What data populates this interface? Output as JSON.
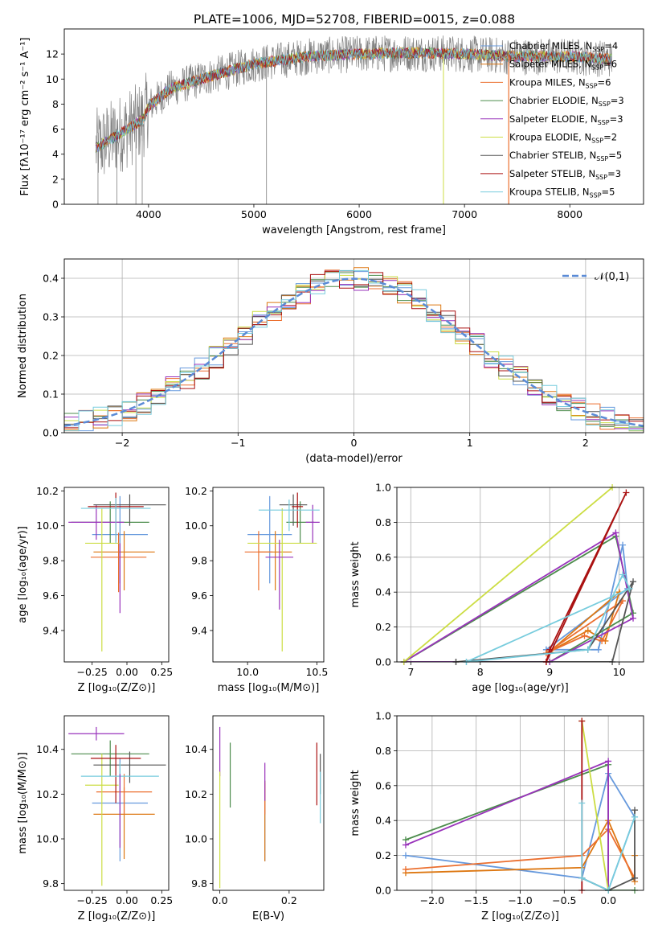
{
  "title": "PLATE=1006, MJD=52708, FIBERID=0015, z=0.088",
  "colors": [
    "#6699dd",
    "#dd7711",
    "#eb6f2f",
    "#4c8c4c",
    "#9933bb",
    "#ccdd44",
    "#555555",
    "#aa1111",
    "#77ccdd"
  ],
  "chart_data": [
    {
      "id": "spectrum",
      "type": "line",
      "xlabel": "wavelength [Angstrom, rest frame]",
      "ylabel": "Flux [fλ10⁻¹⁷ erg cm⁻² s⁻¹ A⁻¹]",
      "xlim": [
        3200,
        8700
      ],
      "ylim": [
        0,
        14
      ],
      "xticks": [
        "4000",
        "5000",
        "6000",
        "7000",
        "8000"
      ],
      "yticks": [
        "0",
        "2",
        "4",
        "6",
        "8",
        "10",
        "12"
      ],
      "legend": [
        "Chabrier MILES, N_SSP=4",
        "Salpeter MILES, N_SSP=6",
        "Kroupa MILES, N_SSP=6",
        "Chabrier ELODIE, N_SSP=3",
        "Salpeter ELODIE, N_SSP=3",
        "Kroupa ELODIE, N_SSP=2",
        "Chabrier STELIB, N_SSP=5",
        "Salpeter STELIB, N_SSP=3",
        "Kroupa STELIB, N_SSP=5"
      ],
      "continuum": [
        [
          3500,
          4.5
        ],
        [
          3800,
          6.0
        ],
        [
          3950,
          6.8
        ],
        [
          4000,
          7.8
        ],
        [
          4200,
          9.2
        ],
        [
          4500,
          10.0
        ],
        [
          5000,
          11.2
        ],
        [
          5500,
          11.8
        ],
        [
          6000,
          12.0
        ],
        [
          6500,
          12.1
        ],
        [
          7000,
          12.0
        ],
        [
          7500,
          11.8
        ],
        [
          8000,
          11.8
        ],
        [
          8400,
          11.6
        ]
      ]
    },
    {
      "id": "residuals",
      "type": "histogram",
      "xlabel": "(data-model)/error",
      "ylabel": "Normed distribution",
      "xlim": [
        -2.5,
        2.5
      ],
      "ylim": [
        0,
        0.45
      ],
      "xticks": [
        "−2",
        "−1",
        "0",
        "1",
        "2"
      ],
      "yticks": [
        "0.0",
        "0.1",
        "0.2",
        "0.3",
        "0.4"
      ],
      "legend": "𝒩(0,1)"
    },
    {
      "id": "age-vs-Z",
      "type": "errorbar",
      "xlabel": "Z [log₁₀(Z/Z⊙)]",
      "ylabel": "age  [log₁₀(age/yr)]",
      "xlim": [
        -0.45,
        0.3
      ],
      "ylim": [
        9.22,
        10.22
      ],
      "xticks": [
        "−0.25",
        "0.00",
        "0.25"
      ],
      "yticks": [
        "9.4",
        "9.6",
        "9.8",
        "10.0",
        "10.2"
      ],
      "points": [
        {
          "c": 0,
          "x": -0.05,
          "xe": 0.2,
          "y": 9.95,
          "ye": [
            0.28,
            0.22
          ]
        },
        {
          "c": 1,
          "x": -0.02,
          "xe": 0.22,
          "y": 9.85,
          "ye": [
            0.22,
            0.12
          ]
        },
        {
          "c": 2,
          "x": -0.06,
          "xe": 0.2,
          "y": 9.82,
          "ye": [
            0.2,
            0.14
          ]
        },
        {
          "c": 3,
          "x": -0.12,
          "xe": 0.28,
          "y": 10.02,
          "ye": [
            0.12,
            0.12
          ]
        },
        {
          "c": 4,
          "x": -0.22,
          "xe": 0.2,
          "y": 10.02,
          "ye": [
            0.1,
            0.1
          ]
        },
        {
          "c": 5,
          "x": -0.18,
          "xe": 0.12,
          "y": 9.9,
          "ye": [
            0.62,
            0.2
          ]
        },
        {
          "c": 6,
          "x": 0.02,
          "xe": 0.26,
          "y": 10.12,
          "ye": [
            0.12,
            0.06
          ]
        },
        {
          "c": 7,
          "x": -0.08,
          "xe": 0.2,
          "y": 10.11,
          "ye": [
            0.2,
            0.08
          ]
        },
        {
          "c": 8,
          "x": -0.08,
          "xe": 0.25,
          "y": 10.1,
          "ye": [
            0.2,
            0.06
          ]
        },
        {
          "c": 4,
          "x": -0.05,
          "xe": 0.0,
          "y": 9.8,
          "ye": [
            0.3,
            0.1
          ]
        }
      ]
    },
    {
      "id": "age-vs-mass",
      "type": "errorbar",
      "xlabel": "mass [log₁₀(M/M⊙)]",
      "ylabel": "",
      "xlim": [
        9.75,
        10.55
      ],
      "ylim": [
        9.22,
        10.22
      ],
      "xticks": [
        "10.0",
        "10.5"
      ],
      "yticks": [
        "9.4",
        "9.6",
        "9.8",
        "10.0",
        "10.2"
      ],
      "points": [
        {
          "c": 0,
          "x": 10.16,
          "xe": 0.16,
          "y": 9.95,
          "ye": [
            0.28,
            0.22
          ]
        },
        {
          "c": 1,
          "x": 10.2,
          "xe": 0.12,
          "y": 9.85,
          "ye": [
            0.22,
            0.12
          ]
        },
        {
          "c": 2,
          "x": 10.08,
          "xe": 0.1,
          "y": 9.85,
          "ye": [
            0.22,
            0.12
          ]
        },
        {
          "c": 3,
          "x": 10.38,
          "xe": 0.1,
          "y": 10.02,
          "ye": [
            0.12,
            0.12
          ]
        },
        {
          "c": 4,
          "x": 10.47,
          "xe": 0.05,
          "y": 10.02,
          "ye": [
            0.12,
            0.1
          ]
        },
        {
          "c": 5,
          "x": 10.25,
          "xe": 0.25,
          "y": 9.9,
          "ye": [
            0.62,
            0.2
          ]
        },
        {
          "c": 6,
          "x": 10.33,
          "xe": 0.1,
          "y": 10.12,
          "ye": [
            0.12,
            0.06
          ]
        },
        {
          "c": 7,
          "x": 10.36,
          "xe": 0.04,
          "y": 10.11,
          "ye": [
            0.12,
            0.08
          ]
        },
        {
          "c": 8,
          "x": 10.3,
          "xe": 0.22,
          "y": 10.09,
          "ye": [
            0.12,
            0.06
          ]
        },
        {
          "c": 4,
          "x": 10.23,
          "xe": 0.1,
          "y": 9.82,
          "ye": [
            0.3,
            0.1
          ]
        }
      ]
    },
    {
      "id": "weight-vs-age",
      "type": "line",
      "xlabel": "age  [log₁₀(age/yr)]",
      "ylabel": "mass weight",
      "xlim": [
        6.8,
        10.35
      ],
      "ylim": [
        0,
        1
      ],
      "xticks": [
        "7",
        "8",
        "9",
        "10"
      ],
      "yticks": [
        "0.0",
        "0.2",
        "0.4",
        "0.6",
        "0.8",
        "1.0"
      ],
      "series": [
        {
          "c": 0,
          "pts": [
            [
              8.95,
              0.07
            ],
            [
              9.7,
              0.07
            ],
            [
              10.05,
              0.67
            ],
            [
              10.12,
              0.42
            ],
            [
              8.95,
              0.07
            ]
          ]
        },
        {
          "c": 1,
          "pts": [
            [
              9.0,
              0.06
            ],
            [
              9.55,
              0.18
            ],
            [
              9.8,
              0.12
            ],
            [
              10.0,
              0.4
            ],
            [
              9.0,
              0.06
            ]
          ]
        },
        {
          "c": 2,
          "pts": [
            [
              8.95,
              0.05
            ],
            [
              9.5,
              0.15
            ],
            [
              9.75,
              0.12
            ],
            [
              10.05,
              0.35
            ],
            [
              8.95,
              0.05
            ]
          ]
        },
        {
          "c": 3,
          "pts": [
            [
              6.9,
              0.0
            ],
            [
              9.95,
              0.72
            ],
            [
              10.2,
              0.28
            ],
            [
              9.0,
              0.0
            ],
            [
              6.9,
              0.0
            ]
          ]
        },
        {
          "c": 4,
          "pts": [
            [
              6.9,
              0.0
            ],
            [
              9.95,
              0.74
            ],
            [
              10.2,
              0.25
            ],
            [
              9.0,
              0.0
            ],
            [
              6.9,
              0.0
            ]
          ]
        },
        {
          "c": 5,
          "pts": [
            [
              6.9,
              0.0
            ],
            [
              9.9,
              1.0
            ]
          ]
        },
        {
          "c": 6,
          "pts": [
            [
              7.65,
              0.0
            ],
            [
              9.55,
              0.07
            ],
            [
              10.2,
              0.46
            ],
            [
              9.9,
              0.0
            ],
            [
              7.65,
              0.0
            ]
          ]
        },
        {
          "c": 7,
          "pts": [
            [
              8.95,
              0.0
            ],
            [
              9.0,
              0.07
            ],
            [
              10.1,
              0.97
            ],
            [
              8.95,
              0.0
            ]
          ]
        },
        {
          "c": 8,
          "pts": [
            [
              7.8,
              0.0
            ],
            [
              9.55,
              0.07
            ],
            [
              10.05,
              0.5
            ],
            [
              10.15,
              0.42
            ],
            [
              7.8,
              0.0
            ]
          ]
        }
      ]
    },
    {
      "id": "mass-vs-Z",
      "type": "errorbar",
      "xlabel": "Z [log₁₀(Z/Z⊙)]",
      "ylabel": "mass [log₁₀(M/M⊙)]",
      "xlim": [
        -0.45,
        0.3
      ],
      "ylim": [
        9.77,
        10.55
      ],
      "xticks": [
        "−0.25",
        "0.00",
        "0.25"
      ],
      "yticks": [
        "9.8",
        "10.0",
        "10.2",
        "10.4"
      ],
      "points": [
        {
          "c": 0,
          "x": -0.05,
          "xe": 0.2,
          "y": 10.16,
          "ye": [
            0.26,
            0.2
          ]
        },
        {
          "c": 1,
          "x": -0.02,
          "xe": 0.22,
          "y": 10.11,
          "ye": [
            0.2,
            0.12
          ]
        },
        {
          "c": 2,
          "x": -0.02,
          "xe": 0.2,
          "y": 10.21,
          "ye": [
            0.1,
            0.08
          ]
        },
        {
          "c": 3,
          "x": -0.12,
          "xe": 0.28,
          "y": 10.38,
          "ye": [
            0.1,
            0.06
          ]
        },
        {
          "c": 4,
          "x": -0.22,
          "xe": 0.2,
          "y": 10.47,
          "ye": [
            0.03,
            0.03
          ]
        },
        {
          "c": 5,
          "x": -0.18,
          "xe": 0.12,
          "y": 10.24,
          "ye": [
            0.45,
            0.14
          ]
        },
        {
          "c": 6,
          "x": 0.02,
          "xe": 0.26,
          "y": 10.33,
          "ye": [
            0.08,
            0.06
          ]
        },
        {
          "c": 7,
          "x": -0.08,
          "xe": 0.18,
          "y": 10.36,
          "ye": [
            0.2,
            0.06
          ]
        },
        {
          "c": 8,
          "x": -0.05,
          "xe": 0.28,
          "y": 10.28,
          "ye": [
            0.12,
            0.06
          ]
        },
        {
          "c": 4,
          "x": -0.05,
          "xe": 0.0,
          "y": 10.21,
          "ye": [
            0.25,
            0.08
          ]
        }
      ]
    },
    {
      "id": "mass-vs-EBV",
      "type": "errorbar",
      "xlabel": "E(B-V)",
      "ylabel": "",
      "xlim": [
        -0.02,
        0.3
      ],
      "ylim": [
        9.77,
        10.55
      ],
      "xticks": [
        "0.0",
        "0.2"
      ],
      "yticks": [
        "9.8",
        "10.0",
        "10.2",
        "10.4"
      ],
      "points": [
        {
          "c": 0,
          "x": 0.13,
          "xe": 0,
          "y": 10.16,
          "ye": [
            0.26,
            0.1
          ]
        },
        {
          "c": 1,
          "x": 0.13,
          "xe": 0,
          "y": 10.1,
          "ye": [
            0.2,
            0.15
          ]
        },
        {
          "c": 2,
          "x": 0.13,
          "xe": 0,
          "y": 10.21,
          "ye": [
            0.1,
            0.05
          ]
        },
        {
          "c": 3,
          "x": 0.03,
          "xe": 0,
          "y": 10.3,
          "ye": [
            0.16,
            0.13
          ]
        },
        {
          "c": 4,
          "x": 0.0,
          "xe": 0,
          "y": 10.4,
          "ye": [
            0.12,
            0.1
          ]
        },
        {
          "c": 5,
          "x": 0.0,
          "xe": 0,
          "y": 10.1,
          "ye": [
            0.32,
            0.2
          ]
        },
        {
          "c": 6,
          "x": 0.29,
          "xe": 0,
          "y": 10.3,
          "ye": [
            0.1,
            0.08
          ]
        },
        {
          "c": 7,
          "x": 0.28,
          "xe": 0,
          "y": 10.3,
          "ye": [
            0.15,
            0.13
          ]
        },
        {
          "c": 8,
          "x": 0.29,
          "xe": 0,
          "y": 10.2,
          "ye": [
            0.13,
            0.1
          ]
        },
        {
          "c": 4,
          "x": 0.13,
          "xe": 0,
          "y": 10.27,
          "ye": [
            0.1,
            0.07
          ]
        }
      ]
    },
    {
      "id": "weight-vs-Z",
      "type": "line",
      "xlabel": "Z [log₁₀(Z/Z⊙)]",
      "ylabel": "mass weight",
      "xlim": [
        -2.4,
        0.4
      ],
      "ylim": [
        0,
        1
      ],
      "xticks": [
        "−2.0",
        "−1.5",
        "−1.0",
        "−0.5",
        "0.0"
      ],
      "yticks": [
        "0.0",
        "0.2",
        "0.4",
        "0.6",
        "0.8",
        "1.0"
      ],
      "series": [
        {
          "c": 0,
          "pts": [
            [
              -2.3,
              0.2
            ],
            [
              -0.3,
              0.07
            ],
            [
              0.0,
              0.67
            ],
            [
              0.3,
              0.42
            ],
            [
              0.0,
              0.0
            ],
            [
              -0.3,
              0.07
            ]
          ]
        },
        {
          "c": 1,
          "pts": [
            [
              -2.3,
              0.1
            ],
            [
              -0.3,
              0.13
            ],
            [
              0.0,
              0.4
            ],
            [
              0.3,
              0.05
            ],
            [
              0.3,
              0.2
            ]
          ]
        },
        {
          "c": 2,
          "pts": [
            [
              -2.3,
              0.12
            ],
            [
              -0.3,
              0.2
            ],
            [
              0.0,
              0.35
            ],
            [
              0.3,
              0.07
            ]
          ]
        },
        {
          "c": 3,
          "pts": [
            [
              -2.3,
              0.29
            ],
            [
              0.0,
              0.72
            ],
            [
              0.0,
              0.0
            ],
            [
              0.3,
              0.0
            ]
          ]
        },
        {
          "c": 4,
          "pts": [
            [
              -2.3,
              0.26
            ],
            [
              0.0,
              0.74
            ],
            [
              0.0,
              0.0
            ]
          ]
        },
        {
          "c": 5,
          "pts": [
            [
              -0.3,
              0.97
            ],
            [
              0.0,
              0.0
            ]
          ]
        },
        {
          "c": 6,
          "pts": [
            [
              0.3,
              0.46
            ],
            [
              0.3,
              0.07
            ],
            [
              0.0,
              0.0
            ],
            [
              -0.3,
              0.07
            ]
          ]
        },
        {
          "c": 7,
          "pts": [
            [
              -0.3,
              0.97
            ],
            [
              -0.3,
              0.0
            ]
          ]
        },
        {
          "c": 8,
          "pts": [
            [
              -0.3,
              0.5
            ],
            [
              -0.3,
              0.07
            ],
            [
              0.0,
              0.0
            ],
            [
              0.3,
              0.42
            ]
          ]
        }
      ]
    }
  ]
}
